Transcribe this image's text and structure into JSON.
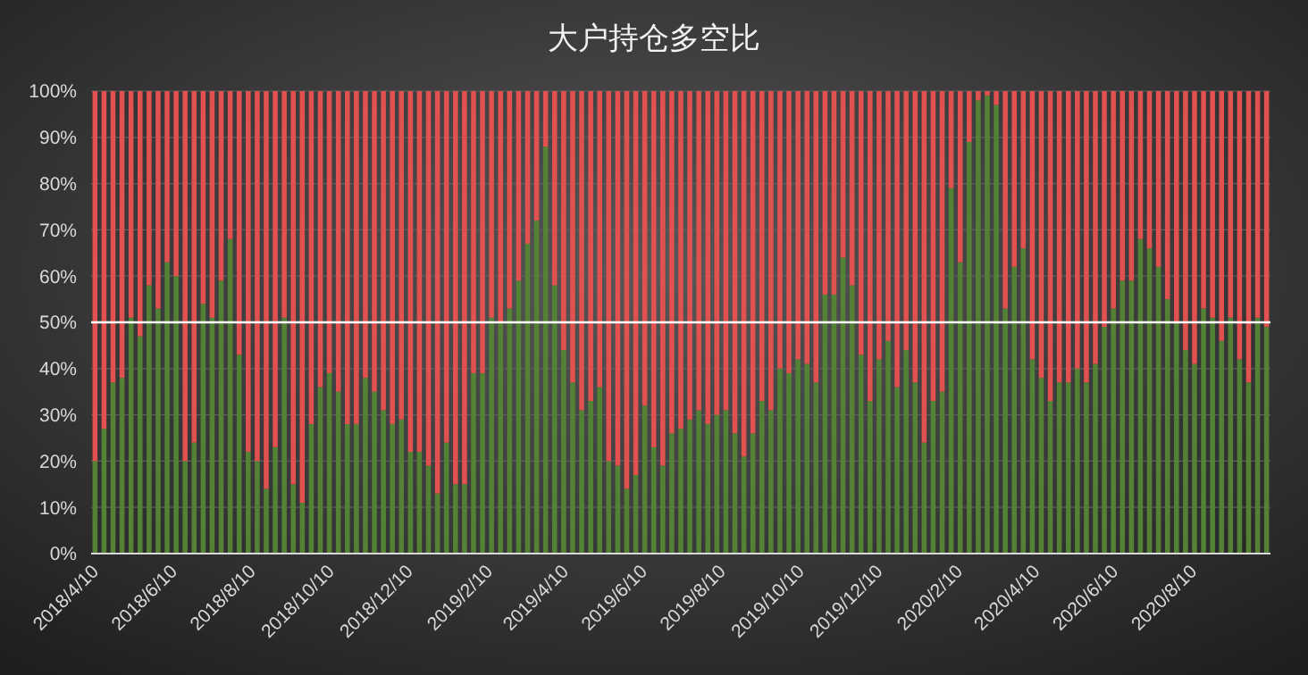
{
  "chart_data": {
    "type": "bar",
    "title": "大户持仓多空比",
    "stacked": true,
    "x": [
      "2018-04-10",
      "2018-04-17",
      "2018-04-24",
      "2018-05-01",
      "2018-05-08",
      "2018-05-15",
      "2018-05-22",
      "2018-05-29",
      "2018-06-05",
      "2018-06-12",
      "2018-06-19",
      "2018-06-26",
      "2018-07-03",
      "2018-07-10",
      "2018-07-17",
      "2018-07-24",
      "2018-07-31",
      "2018-08-07",
      "2018-08-14",
      "2018-08-21",
      "2018-08-28",
      "2018-09-04",
      "2018-09-11",
      "2018-09-18",
      "2018-09-25",
      "2018-10-02",
      "2018-10-09",
      "2018-10-16",
      "2018-10-23",
      "2018-10-30",
      "2018-11-06",
      "2018-11-13",
      "2018-11-20",
      "2018-11-27",
      "2018-12-04",
      "2018-12-11",
      "2018-12-18",
      "2018-12-25",
      "2019-01-01",
      "2019-01-08",
      "2019-01-15",
      "2019-01-22",
      "2019-01-29",
      "2019-02-05",
      "2019-02-12",
      "2019-02-19",
      "2019-02-26",
      "2019-03-05",
      "2019-03-12",
      "2019-03-19",
      "2019-03-26",
      "2019-04-02",
      "2019-04-09",
      "2019-04-16",
      "2019-04-23",
      "2019-04-30",
      "2019-05-07",
      "2019-05-14",
      "2019-05-21",
      "2019-05-28",
      "2019-06-04",
      "2019-06-11",
      "2019-06-18",
      "2019-06-25",
      "2019-07-02",
      "2019-07-09",
      "2019-07-16",
      "2019-07-23",
      "2019-07-30",
      "2019-08-06",
      "2019-08-13",
      "2019-08-20",
      "2019-08-27",
      "2019-09-03",
      "2019-09-10",
      "2019-09-17",
      "2019-09-24",
      "2019-10-01",
      "2019-10-08",
      "2019-10-15",
      "2019-10-22",
      "2019-10-29",
      "2019-11-05",
      "2019-11-12",
      "2019-11-19",
      "2019-11-26",
      "2019-12-03",
      "2019-12-10",
      "2019-12-17",
      "2019-12-24",
      "2019-12-31",
      "2020-01-07",
      "2020-01-14",
      "2020-01-21",
      "2020-01-28",
      "2020-02-04",
      "2020-02-11",
      "2020-02-18",
      "2020-02-25",
      "2020-03-03",
      "2020-03-10",
      "2020-03-17",
      "2020-03-24",
      "2020-03-31",
      "2020-04-07",
      "2020-04-14",
      "2020-04-21",
      "2020-04-28",
      "2020-05-05",
      "2020-05-12",
      "2020-05-19",
      "2020-05-26",
      "2020-06-02",
      "2020-06-09",
      "2020-06-16",
      "2020-06-23",
      "2020-06-30",
      "2020-07-07",
      "2020-07-14",
      "2020-07-21",
      "2020-07-28",
      "2020-08-04",
      "2020-08-11",
      "2020-08-18",
      "2020-08-25",
      "2020-09-01",
      "2020-09-08",
      "2020-09-15",
      "2020-09-22",
      "2020-09-29",
      "2020-10-06"
    ],
    "series": [
      {
        "color": "#548235",
        "values": [
          20,
          27,
          37,
          38,
          51,
          47,
          58,
          53,
          63,
          60,
          20,
          24,
          54,
          51,
          59,
          68,
          43,
          22,
          20,
          14,
          23,
          51,
          15,
          11,
          28,
          36,
          39,
          35,
          28,
          28,
          38,
          35,
          31,
          28,
          29,
          22,
          22,
          19,
          13,
          24,
          15,
          15,
          39,
          39,
          51,
          50,
          53,
          59,
          67,
          72,
          88,
          58,
          44,
          37,
          31,
          33,
          36,
          20,
          19,
          14,
          17,
          32,
          23,
          19,
          26,
          27,
          29,
          31,
          28,
          30,
          31,
          26,
          21,
          26,
          33,
          31,
          40,
          39,
          42,
          41,
          37,
          56,
          56,
          64,
          58,
          43,
          33,
          42,
          46,
          36,
          44,
          37,
          24,
          33,
          35,
          79,
          63,
          89,
          98,
          99,
          97,
          53,
          62,
          66,
          42,
          38,
          33,
          37,
          37,
          40,
          37,
          41,
          49,
          53,
          59,
          59,
          68,
          66,
          62,
          55,
          50,
          44,
          41,
          53,
          51,
          46,
          51,
          42,
          37,
          51,
          49
        ]
      },
      {
        "color": "#e0514f",
        "values": [
          80,
          73,
          63,
          62,
          49,
          53,
          42,
          47,
          37,
          40,
          80,
          76,
          46,
          49,
          41,
          32,
          57,
          78,
          80,
          86,
          77,
          49,
          85,
          89,
          72,
          64,
          61,
          65,
          72,
          72,
          62,
          65,
          69,
          72,
          71,
          78,
          78,
          81,
          87,
          76,
          85,
          85,
          61,
          61,
          49,
          50,
          47,
          41,
          33,
          28,
          12,
          42,
          56,
          63,
          69,
          67,
          64,
          80,
          81,
          86,
          83,
          68,
          77,
          81,
          74,
          73,
          71,
          69,
          72,
          70,
          69,
          74,
          79,
          74,
          67,
          69,
          60,
          61,
          58,
          59,
          63,
          44,
          44,
          36,
          42,
          57,
          67,
          58,
          54,
          64,
          56,
          63,
          76,
          67,
          65,
          21,
          37,
          11,
          2,
          1,
          3,
          47,
          38,
          34,
          58,
          62,
          67,
          63,
          63,
          60,
          63,
          59,
          51,
          47,
          41,
          41,
          32,
          34,
          38,
          45,
          50,
          56,
          59,
          47,
          49,
          54,
          49,
          58,
          63,
          49,
          51
        ]
      }
    ],
    "xlim": [
      "2018-04-07",
      "2020-10-09"
    ],
    "xticks": [
      {
        "value": "2018-04-10",
        "label": "2018/4/10"
      },
      {
        "value": "2018-06-10",
        "label": "2018/6/10"
      },
      {
        "value": "2018-08-10",
        "label": "2018/8/10"
      },
      {
        "value": "2018-10-10",
        "label": "2018/10/10"
      },
      {
        "value": "2018-12-10",
        "label": "2018/12/10"
      },
      {
        "value": "2019-02-10",
        "label": "2019/2/10"
      },
      {
        "value": "2019-04-10",
        "label": "2019/4/10"
      },
      {
        "value": "2019-06-10",
        "label": "2019/6/10"
      },
      {
        "value": "2019-08-10",
        "label": "2019/8/10"
      },
      {
        "value": "2019-10-10",
        "label": "2019/10/10"
      },
      {
        "value": "2019-12-10",
        "label": "2019/12/10"
      },
      {
        "value": "2020-02-10",
        "label": "2020/2/10"
      },
      {
        "value": "2020-04-10",
        "label": "2020/4/10"
      },
      {
        "value": "2020-06-10",
        "label": "2020/6/10"
      },
      {
        "value": "2020-08-10",
        "label": "2020/8/10"
      }
    ],
    "ylim": [
      0,
      100
    ],
    "yticks": [
      {
        "value": 0,
        "label": "0%"
      },
      {
        "value": 10,
        "label": "10%"
      },
      {
        "value": 20,
        "label": "20%"
      },
      {
        "value": 30,
        "label": "30%"
      },
      {
        "value": 40,
        "label": "40%"
      },
      {
        "value": 50,
        "label": "50%"
      },
      {
        "value": 60,
        "label": "60%"
      },
      {
        "value": 70,
        "label": "70%"
      },
      {
        "value": 80,
        "label": "80%"
      },
      {
        "value": 90,
        "label": "90%"
      },
      {
        "value": 100,
        "label": "100%"
      }
    ],
    "grid": "y",
    "ref_lines": [
      {
        "axis": "y",
        "value": 50,
        "color": "#ffffff"
      }
    ]
  }
}
